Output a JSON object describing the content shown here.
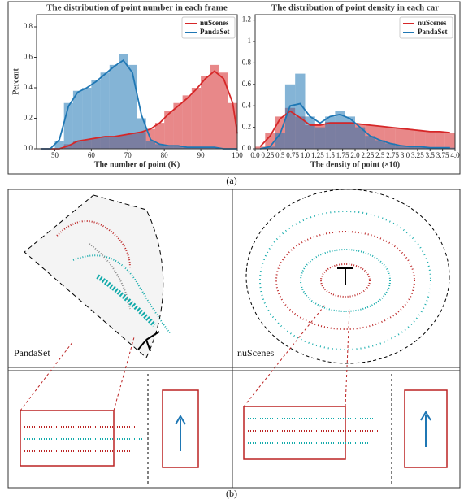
{
  "figure": {
    "panel_a_label": "(a)",
    "panel_b_label": "(b)",
    "image_labels": [
      "PandaSet",
      "nuScenes"
    ]
  },
  "chart_data": [
    {
      "type": "histogram",
      "title": "The distribution of point number in each frame",
      "xlabel": "The number of point (K)",
      "ylabel": "Percent",
      "bins": [
        45,
        47.5,
        50,
        52.5,
        55,
        57.5,
        60,
        62.5,
        65,
        67.5,
        70,
        72.5,
        75,
        77.5,
        80,
        82.5,
        85,
        87.5,
        90,
        92.5,
        95,
        97.5,
        100
      ],
      "series": [
        {
          "name": "nuScenes",
          "color": "#d62728",
          "values": [
            0,
            0,
            0,
            0.03,
            0.05,
            0.06,
            0.07,
            0.08,
            0.08,
            0.09,
            0.1,
            0.11,
            0.13,
            0.17,
            0.25,
            0.3,
            0.35,
            0.4,
            0.48,
            0.55,
            0.5,
            0.3,
            0.08
          ],
          "curve": [
            0,
            0,
            0,
            0.02,
            0.05,
            0.06,
            0.07,
            0.08,
            0.08,
            0.09,
            0.1,
            0.11,
            0.13,
            0.17,
            0.23,
            0.28,
            0.33,
            0.39,
            0.46,
            0.51,
            0.46,
            0.3,
            0.1
          ]
        },
        {
          "name": "PandaSet",
          "color": "#1f77b4",
          "values": [
            0,
            0,
            0.05,
            0.3,
            0.38,
            0.4,
            0.45,
            0.5,
            0.55,
            0.62,
            0.55,
            0.2,
            0.05,
            0.03,
            0.02,
            0.02,
            0.01,
            0.01,
            0.01,
            0.01,
            0,
            0,
            0
          ],
          "curve": [
            0,
            0,
            0.06,
            0.28,
            0.37,
            0.4,
            0.44,
            0.49,
            0.54,
            0.58,
            0.5,
            0.22,
            0.06,
            0.03,
            0.02,
            0.02,
            0.01,
            0.01,
            0.01,
            0.01,
            0,
            0,
            0
          ]
        }
      ],
      "xlim": [
        45,
        100
      ],
      "ylim": [
        0,
        0.88
      ],
      "xticks": [
        50,
        60,
        70,
        80,
        90,
        100
      ],
      "yticks": [
        {
          "value": 0,
          "label": "0.0"
        },
        0.2,
        0.4,
        0.6,
        0.8
      ],
      "legend": "upper right"
    },
    {
      "type": "histogram",
      "title": "The distribution of point density in each car",
      "xlabel": "The density of point (×10)",
      "bins": [
        0,
        0.2,
        0.4,
        0.6,
        0.8,
        1.0,
        1.2,
        1.4,
        1.6,
        1.8,
        2.0,
        2.2,
        2.4,
        2.6,
        2.8,
        3.0,
        3.2,
        3.4,
        3.6,
        3.8,
        4.0
      ],
      "series": [
        {
          "name": "nuScenes",
          "color": "#d62728",
          "values": [
            0.02,
            0.15,
            0.3,
            0.38,
            0.3,
            0.22,
            0.22,
            0.25,
            0.25,
            0.25,
            0.23,
            0.22,
            0.21,
            0.2,
            0.19,
            0.18,
            0.17,
            0.16,
            0.16,
            0.15
          ],
          "curve": [
            0.02,
            0.12,
            0.28,
            0.35,
            0.29,
            0.22,
            0.22,
            0.24,
            0.24,
            0.24,
            0.23,
            0.22,
            0.21,
            0.2,
            0.19,
            0.18,
            0.17,
            0.16,
            0.16,
            0.15
          ]
        },
        {
          "name": "PandaSet",
          "color": "#1f77b4",
          "values": [
            0,
            0.02,
            0.15,
            0.6,
            0.7,
            0.3,
            0.2,
            0.3,
            0.35,
            0.3,
            0.2,
            0.12,
            0.08,
            0.05,
            0.03,
            0.02,
            0.02,
            0.01,
            0.01,
            0.01
          ],
          "curve": [
            0,
            0.02,
            0.14,
            0.4,
            0.42,
            0.3,
            0.24,
            0.3,
            0.32,
            0.28,
            0.2,
            0.12,
            0.08,
            0.05,
            0.03,
            0.02,
            0.02,
            0.01,
            0.01,
            0.01
          ]
        }
      ],
      "xlim": [
        0,
        4
      ],
      "ylim": [
        0,
        1.25
      ],
      "xticks": [
        {
          "value": 0,
          "label": "0.0"
        },
        0.25,
        {
          "value": 0.5,
          "label": "0.5"
        },
        0.75,
        {
          "value": 1,
          "label": "1.0"
        },
        1.25,
        {
          "value": 1.5,
          "label": "1.5"
        },
        1.75,
        {
          "value": 2,
          "label": "2.0"
        },
        2.25,
        {
          "value": 2.5,
          "label": "2.5"
        },
        2.75,
        {
          "value": 3,
          "label": "3.0"
        },
        3.25,
        {
          "value": 3.5,
          "label": "3.5"
        },
        3.75,
        {
          "value": 4,
          "label": "4.0"
        }
      ],
      "yticks": [
        {
          "value": 0,
          "label": "0.0"
        },
        0.2,
        0.4,
        0.6,
        0.8,
        1.0,
        1.2
      ],
      "legend": "upper right"
    }
  ]
}
